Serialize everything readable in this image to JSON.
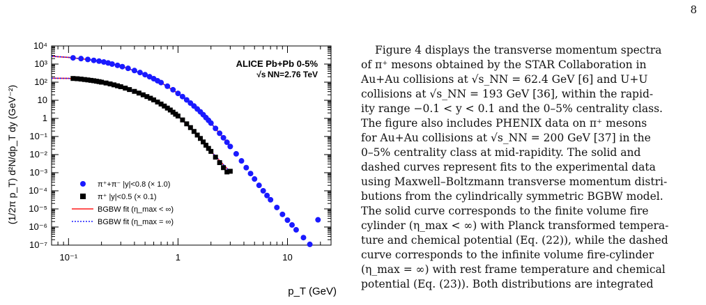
{
  "page": {
    "number": "8"
  },
  "figure": {
    "annotation_line1": "ALICE  Pb+Pb  0-5%",
    "annotation_line2": "√s NN=2.76 TeV",
    "legend": [
      {
        "label": "π⁺+π⁻  |y|<0.8  (× 1.0)",
        "marker": "circle",
        "color": "#1a1aff"
      },
      {
        "label": "π⁺      |y|<0.5  (× 0.1)",
        "marker": "square",
        "color": "#000000"
      },
      {
        "label": "BGBW fit (η_max < ∞)",
        "marker": "solid-line",
        "color": "#ff1a1a"
      },
      {
        "label": "BGBW fit (η_max = ∞)",
        "marker": "dotted-line",
        "color": "#1a1aff"
      }
    ]
  },
  "chart_data": {
    "type": "scatter",
    "xlabel": "p_T (GeV)",
    "ylabel": "(1/2π p_T) d²N/dp_T dy (GeV⁻²)",
    "xscale": "log",
    "yscale": "log",
    "xlim": [
      0.07,
      25
    ],
    "ylim": [
      1e-07,
      10000.0
    ],
    "x_tick_labels": [
      "10⁻¹",
      "1",
      "10"
    ],
    "y_tick_labels": [
      "10⁴",
      "10³",
      "10²",
      "10",
      "1",
      "10⁻¹",
      "10⁻²",
      "10⁻³",
      "10⁻⁴",
      "10⁻⁵",
      "10⁻⁶",
      "10⁻⁷"
    ],
    "grid": false,
    "legend_position": "bottom-left",
    "series": [
      {
        "name": "π⁺+π⁻  |y|<0.8  (× 1.0)",
        "marker": "circle",
        "color": "#1a1aff",
        "points": [
          [
            0.11,
            2200
          ],
          [
            0.13,
            2000
          ],
          [
            0.15,
            1800
          ],
          [
            0.17,
            1600
          ],
          [
            0.19,
            1450
          ],
          [
            0.21,
            1300
          ],
          [
            0.23,
            1150
          ],
          [
            0.25,
            1000
          ],
          [
            0.28,
            850
          ],
          [
            0.31,
            720
          ],
          [
            0.35,
            580
          ],
          [
            0.4,
            440
          ],
          [
            0.45,
            340
          ],
          [
            0.5,
            260
          ],
          [
            0.55,
            200
          ],
          [
            0.6,
            155
          ],
          [
            0.65,
            120
          ],
          [
            0.7,
            95
          ],
          [
            0.8,
            60
          ],
          [
            0.9,
            38
          ],
          [
            1.0,
            24
          ],
          [
            1.1,
            16
          ],
          [
            1.2,
            10.5
          ],
          [
            1.3,
            7
          ],
          [
            1.4,
            4.8
          ],
          [
            1.5,
            3.3
          ],
          [
            1.6,
            2.3
          ],
          [
            1.7,
            1.6
          ],
          [
            1.8,
            1.1
          ],
          [
            1.9,
            0.78
          ],
          [
            2.0,
            0.55
          ],
          [
            2.2,
            0.28
          ],
          [
            2.4,
            0.15
          ],
          [
            2.6,
            0.085
          ],
          [
            2.8,
            0.048
          ],
          [
            3.0,
            0.028
          ],
          [
            3.4,
            0.011
          ],
          [
            3.8,
            0.0045
          ],
          [
            4.2,
            0.0019
          ],
          [
            4.6,
            0.0009
          ],
          [
            5.0,
            0.00045
          ],
          [
            5.5,
            0.0002
          ],
          [
            6.0,
            0.0001
          ],
          [
            6.5,
            5.5e-05
          ],
          [
            7.0,
            3.2e-05
          ],
          [
            8.0,
            1.2e-05
          ],
          [
            9.0,
            5e-06
          ],
          [
            10.0,
            2.4e-06
          ],
          [
            11.0,
            1.3e-06
          ],
          [
            12.0,
            7e-07
          ],
          [
            14.0,
            2.6e-07
          ],
          [
            16.0,
            1.1e-07
          ],
          [
            19.0,
            2.5e-06
          ]
        ]
      },
      {
        "name": "π⁺      |y|<0.5  (× 0.1)",
        "marker": "square",
        "color": "#000000",
        "points": [
          [
            0.11,
            160
          ],
          [
            0.12,
            155
          ],
          [
            0.13,
            148
          ],
          [
            0.14,
            140
          ],
          [
            0.15,
            133
          ],
          [
            0.16,
            126
          ],
          [
            0.17,
            120
          ],
          [
            0.18,
            113
          ],
          [
            0.19,
            107
          ],
          [
            0.2,
            100
          ],
          [
            0.22,
            90
          ],
          [
            0.24,
            80
          ],
          [
            0.26,
            71
          ],
          [
            0.28,
            63
          ],
          [
            0.3,
            56
          ],
          [
            0.33,
            47
          ],
          [
            0.36,
            39
          ],
          [
            0.4,
            31
          ],
          [
            0.44,
            25
          ],
          [
            0.48,
            20
          ],
          [
            0.52,
            16
          ],
          [
            0.56,
            13
          ],
          [
            0.6,
            10.5
          ],
          [
            0.65,
            8
          ],
          [
            0.7,
            6.2
          ],
          [
            0.75,
            4.8
          ],
          [
            0.8,
            3.7
          ],
          [
            0.85,
            2.9
          ],
          [
            0.9,
            2.2
          ],
          [
            0.95,
            1.7
          ],
          [
            1.0,
            1.35
          ],
          [
            1.1,
            0.82
          ],
          [
            1.2,
            0.5
          ],
          [
            1.3,
            0.31
          ],
          [
            1.4,
            0.19
          ],
          [
            1.5,
            0.12
          ],
          [
            1.6,
            0.078
          ],
          [
            1.7,
            0.05
          ],
          [
            1.8,
            0.033
          ],
          [
            1.9,
            0.022
          ],
          [
            2.0,
            0.015
          ],
          [
            2.2,
            0.0072
          ],
          [
            2.4,
            0.0036
          ],
          [
            2.6,
            0.0019
          ],
          [
            2.8,
            0.0011
          ],
          [
            3.0,
            0.0012
          ]
        ]
      },
      {
        "name": "BGBW fit (η_max < ∞)",
        "marker": "solid-line",
        "color": "#ff1a1a",
        "points": [
          [
            0.07,
            2700
          ],
          [
            0.1,
            2350
          ],
          [
            0.15,
            1800
          ],
          [
            0.2,
            1380
          ],
          [
            0.3,
            780
          ],
          [
            0.5,
            260
          ],
          [
            0.7,
            95
          ],
          [
            1.0,
            24
          ],
          [
            1.5,
            3.3
          ],
          [
            2.0,
            0.55
          ],
          [
            3.0,
            0.028
          ]
        ],
        "points_b": [
          [
            0.07,
            165
          ],
          [
            0.1,
            162
          ],
          [
            0.15,
            133
          ],
          [
            0.2,
            100
          ],
          [
            0.3,
            56
          ],
          [
            0.5,
            18
          ],
          [
            0.7,
            6.2
          ],
          [
            1.0,
            1.35
          ],
          [
            1.5,
            0.12
          ],
          [
            2.0,
            0.015
          ],
          [
            3.0,
            0.0011
          ]
        ]
      },
      {
        "name": "BGBW fit (η_max = ∞)",
        "marker": "dotted-line",
        "color": "#1a1aff",
        "points": [
          [
            0.07,
            2700
          ],
          [
            0.1,
            2350
          ],
          [
            0.15,
            1800
          ],
          [
            0.2,
            1380
          ],
          [
            0.3,
            780
          ],
          [
            0.5,
            260
          ],
          [
            0.7,
            95
          ],
          [
            1.0,
            24
          ],
          [
            1.5,
            3.3
          ],
          [
            2.0,
            0.55
          ],
          [
            3.0,
            0.028
          ]
        ],
        "points_b": [
          [
            0.07,
            165
          ],
          [
            0.1,
            162
          ],
          [
            0.15,
            133
          ],
          [
            0.2,
            100
          ],
          [
            0.3,
            56
          ],
          [
            0.5,
            18
          ],
          [
            0.7,
            6.2
          ],
          [
            1.0,
            1.35
          ],
          [
            1.5,
            0.12
          ],
          [
            2.0,
            0.015
          ],
          [
            3.0,
            0.0011
          ]
        ]
      }
    ]
  },
  "text": {
    "lines": [
      "Figure 4 displays the transverse momentum spectra",
      "of π⁺ mesons obtained by the STAR Collaboration in",
      "Au+Au collisions at √s_NN = 62.4 GeV [6] and U+U",
      "collisions at √s_NN = 193 GeV [36], within the rapid-",
      "ity range −0.1 < y < 0.1 and the 0–5% centrality class.",
      "The figure also includes PHENIX data on π⁺ mesons",
      "for Au+Au collisions at √s_NN = 200 GeV [37] in the",
      "0–5% centrality class at mid-rapidity.  The solid and",
      "dashed curves represent fits to the experimental data",
      "using Maxwell–Boltzmann transverse momentum distri-",
      "butions from the cylindrically symmetric BGBW model.",
      "The solid curve corresponds to the finite volume fire",
      "cylinder (η_max < ∞) with Planck transformed tempera-",
      "ture and chemical potential (Eq. (22)), while the dashed",
      "curve corresponds to the infinite volume fire-cylinder",
      "(η_max = ∞) with rest frame temperature and chemical",
      "potential (Eq. (23)).  Both distributions are integrated"
    ]
  }
}
